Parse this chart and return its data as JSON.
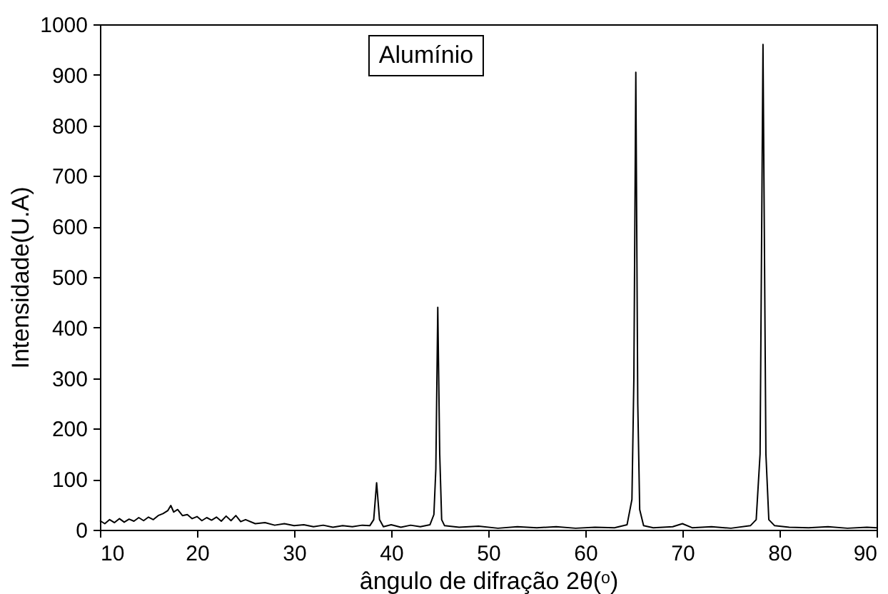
{
  "chart_data": {
    "type": "line",
    "xlabel": "ângulo de difração 2θ(ᵒ)",
    "ylabel": "Intensidade(U.A)",
    "annotations": [
      "Alumínio"
    ],
    "x": [
      10,
      10.5,
      11,
      11.5,
      12,
      12.5,
      13,
      13.5,
      14,
      14.5,
      15,
      15.5,
      16,
      16.5,
      17,
      17.3,
      17.6,
      18,
      18.5,
      19,
      19.5,
      20,
      20.5,
      21,
      21.5,
      22,
      22.5,
      23,
      23.5,
      24,
      24.5,
      25,
      26,
      27,
      28,
      29,
      30,
      31,
      32,
      33,
      34,
      35,
      36,
      37,
      37.8,
      38.2,
      38.5,
      38.8,
      39.2,
      40,
      41,
      42,
      43,
      44,
      44.4,
      44.6,
      44.8,
      45,
      45.2,
      45.5,
      47,
      49,
      51,
      53,
      55,
      57,
      59,
      61,
      63,
      64.3,
      64.8,
      65,
      65.2,
      65.4,
      65.6,
      66,
      67,
      69,
      70,
      71,
      73,
      75,
      77,
      77.6,
      78,
      78.3,
      78.6,
      78.9,
      79.5,
      81,
      83,
      85,
      87,
      89,
      90
    ],
    "series": [
      {
        "color": "#000000",
        "values": [
          18,
          12,
          20,
          14,
          22,
          15,
          21,
          17,
          24,
          18,
          25,
          20,
          28,
          32,
          38,
          48,
          35,
          40,
          28,
          30,
          22,
          26,
          18,
          24,
          19,
          25,
          17,
          27,
          18,
          28,
          16,
          20,
          12,
          14,
          9,
          12,
          8,
          10,
          6,
          9,
          5,
          8,
          6,
          9,
          8,
          20,
          93,
          20,
          6,
          10,
          5,
          9,
          6,
          10,
          30,
          120,
          440,
          150,
          20,
          8,
          5,
          7,
          3,
          6,
          4,
          6,
          3,
          5,
          4,
          10,
          60,
          300,
          905,
          250,
          40,
          8,
          4,
          6,
          12,
          4,
          6,
          3,
          8,
          20,
          150,
          960,
          150,
          20,
          8,
          5,
          4,
          6,
          3,
          5,
          4
        ]
      }
    ],
    "xlim": [
      10,
      90
    ],
    "xticks": [
      10,
      20,
      30,
      40,
      50,
      60,
      70,
      80,
      90
    ],
    "ylim": [
      0,
      1000
    ],
    "yticks": [
      0,
      100,
      200,
      300,
      400,
      500,
      600,
      700,
      800,
      900,
      1000
    ],
    "grid": false,
    "line_style": "solid",
    "marker": "none"
  }
}
